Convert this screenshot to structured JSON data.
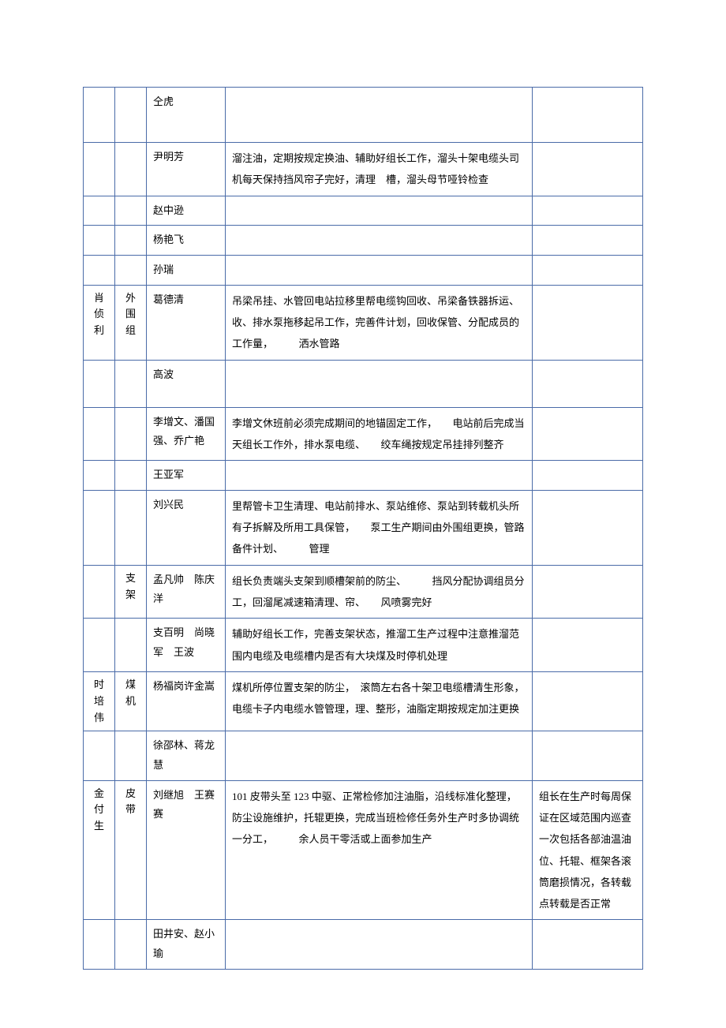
{
  "rows": [
    {
      "c1": "",
      "c2": "",
      "c3": "仝虎",
      "c4": "",
      "c5": ""
    },
    {
      "c1": "",
      "c2": "",
      "c3": "尹明芳",
      "c4": "溜注油，定期按规定换油、辅助好组长工作，溜头十架电缆头司机每天保持挡风帘子完好，清理　槽，溜头母节哑铃检查",
      "c5": ""
    },
    {
      "c1": "",
      "c2": "",
      "c3": "赵中逊",
      "c4": "",
      "c5": ""
    },
    {
      "c1": "",
      "c2": "",
      "c3": "杨艳飞",
      "c4": "",
      "c5": ""
    },
    {
      "c1": "",
      "c2": "",
      "c3": "孙瑞",
      "c4": "",
      "c5": ""
    },
    {
      "c1": "肖侦利",
      "c2": "外围组",
      "c3": "葛德清",
      "c4": "吊梁吊挂、水管回电站拉移里帮电缆钩回收、吊梁备铁器拆运、收、排水泵拖移起吊工作，完善件计划，回收保管、分配成员的工作量，　　　洒水管路",
      "c5": ""
    },
    {
      "c1": "",
      "c2": "",
      "c3": "高波",
      "c4": "",
      "c5": ""
    },
    {
      "c1": "",
      "c2": "",
      "c3": "李增文、潘国强、乔广艳",
      "c4": "李增文休班前必须完成期间的地锚固定工作，　　电站前后完成当天组长工作外，排水泵电缆、　　绞车绳按规定吊挂排列整齐",
      "c5": ""
    },
    {
      "c1": "",
      "c2": "",
      "c3": "王亚军",
      "c4": "",
      "c5": ""
    },
    {
      "c1": "",
      "c2": "",
      "c3": "刘兴民",
      "c4": "里帮管卡卫生清理、电站前排水、泵站维修、泵站到转载机头所有子拆解及所用工具保管，　　泵工生产期间由外围组更换，管路备件计划、　　　管理",
      "c5": ""
    },
    {
      "c1": "",
      "c2": "支架",
      "c3": "孟凡帅　陈庆洋",
      "c4": "组长负责端头支架到顺槽架前的防尘、　　　挡风分配协调组员分工，回溜尾减速箱清理、帘、　　风喷雾完好",
      "c5": ""
    },
    {
      "c1": "",
      "c2": "",
      "c3": "支百明　尚晓军　王波",
      "c4": "辅助好组长工作，完善支架状态，推溜工生产过程中注意推溜范围内电缆及电缆槽内是否有大块煤及时停机处理",
      "c5": ""
    },
    {
      "c1": "时培伟",
      "c2": "煤机",
      "c3": "杨福岗许金嵩",
      "c4": "煤机所停位置支架的防尘，　滚筒左右各十架卫电缆槽清生形象，电缆卡子内电缆水管管理，理、整形，油脂定期按规定加注更换",
      "c5": ""
    },
    {
      "c1": "",
      "c2": "",
      "c3": "徐邵林、蒋龙慧",
      "c4": "",
      "c5": ""
    },
    {
      "c1": "金付生",
      "c2": "皮带",
      "c3": "刘继旭　王赛赛",
      "c4": "101 皮带头至 123 中驱、正常检修加注油脂，沿线标准化整理，防尘设施维护，托辊更换，完成当班检修任务外生产时多协调统一分工，　　　余人员干零活或上面参加生产",
      "c5": "组长在生产时每周保证在区域范围内巡查一次包括各部油温油位、托辊、框架各滚筒磨损情况，各转载点转载是否正常"
    },
    {
      "c1": "",
      "c2": "",
      "c3": "田井安、赵小瑜",
      "c4": "",
      "c5": ""
    }
  ],
  "colors": {
    "border": "#4a6ba8",
    "text": "#000000",
    "background": "#ffffff"
  }
}
